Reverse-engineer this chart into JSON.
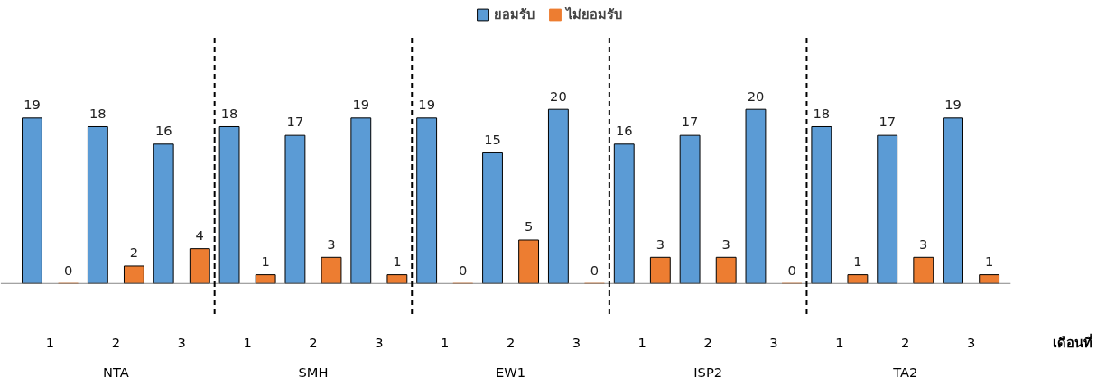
{
  "chart_data": {
    "type": "bar",
    "categories": [
      "1",
      "2",
      "3",
      "1",
      "2",
      "3",
      "1",
      "2",
      "3",
      "1",
      "2",
      "3",
      "1",
      "2",
      "3"
    ],
    "series": [
      {
        "name": "ยอมรับ",
        "color": "#5b9bd5",
        "values": [
          19,
          18,
          16,
          18,
          17,
          19,
          19,
          15,
          20,
          16,
          17,
          20,
          18,
          17,
          19
        ]
      },
      {
        "name": "ไม่ยอมรับ",
        "color": "#ed7d31",
        "values": [
          0,
          2,
          4,
          1,
          3,
          1,
          0,
          5,
          0,
          3,
          3,
          0,
          1,
          3,
          1
        ]
      }
    ],
    "xlabel": "เดือนที่",
    "annotations": [
      "NTA",
      "SMH",
      "EW1",
      "ISP2",
      "TA2"
    ],
    "data_labels": true,
    "legend": "top"
  }
}
